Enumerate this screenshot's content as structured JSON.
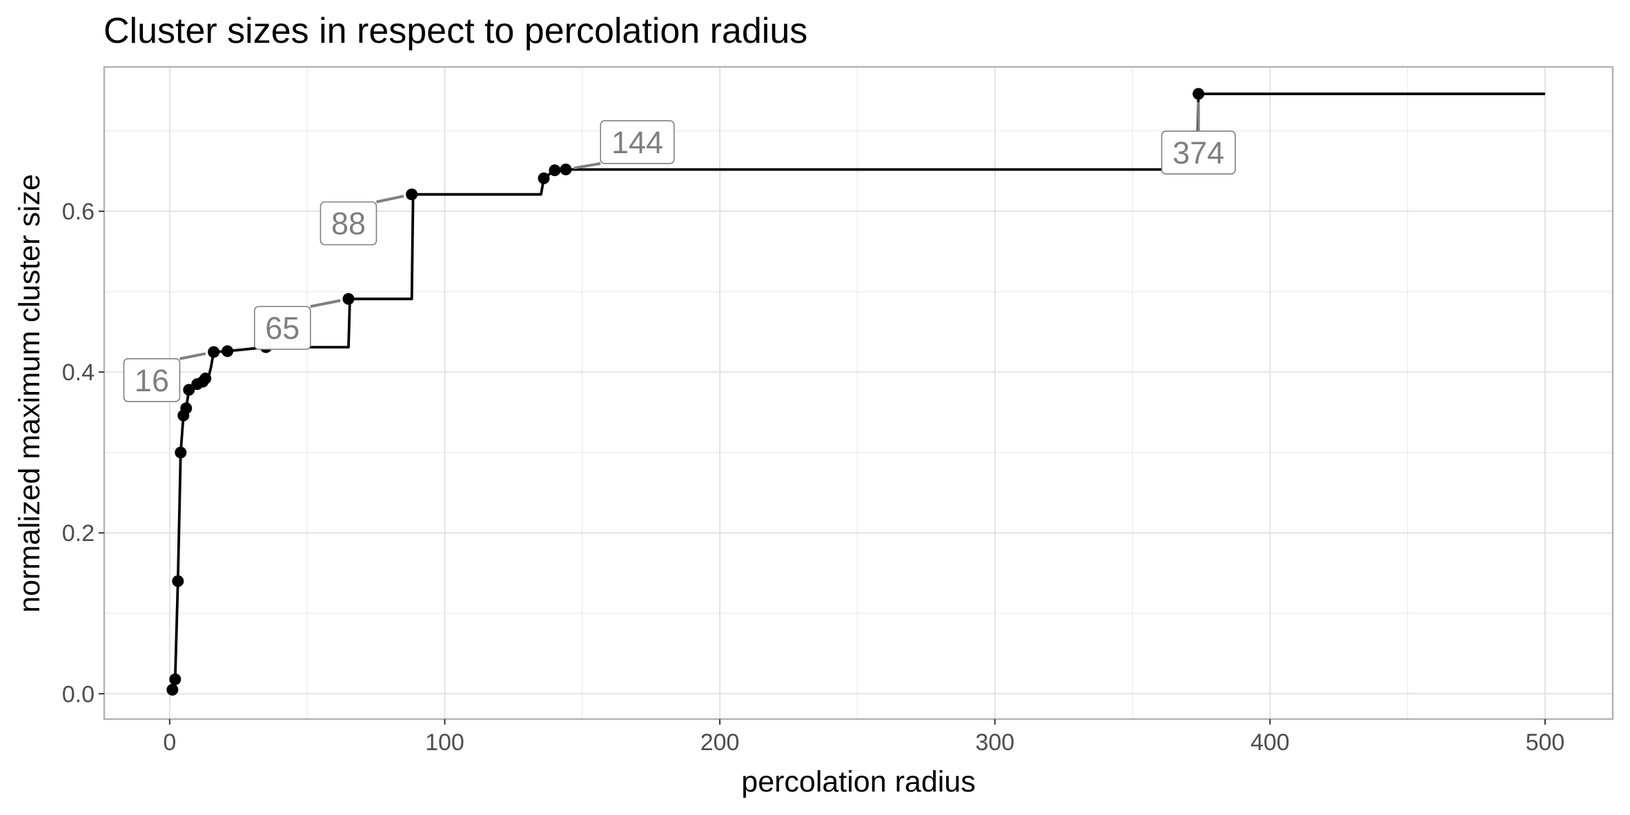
{
  "chart_data": {
    "type": "line",
    "title": "Cluster sizes in respect to percolation radius",
    "xlabel": "percolation radius",
    "ylabel": "normalized maximum cluster size",
    "xlim": [
      -23.8,
      524.6
    ],
    "ylim": [
      -0.0315,
      0.7795
    ],
    "x_ticks": [
      0,
      100,
      200,
      300,
      400,
      500
    ],
    "x_tick_labels": [
      "0",
      "100",
      "200",
      "300",
      "400",
      "500"
    ],
    "y_ticks": [
      0.0,
      0.2,
      0.4,
      0.6
    ],
    "y_tick_labels": [
      "0.0",
      "0.2",
      "0.4",
      "0.6"
    ],
    "grid": true,
    "legend": "none",
    "colors": {
      "line": "#000000",
      "point": "#000000",
      "annotation": "#7f7f7f",
      "grid": "#e2e2e2",
      "frame": "#b3b3b3"
    },
    "series": [
      {
        "values": [
          [
            1,
            0.005
          ],
          [
            2,
            0.018
          ],
          [
            3,
            0.14
          ],
          [
            4,
            0.3
          ],
          [
            5,
            0.346
          ],
          [
            6,
            0.355
          ],
          [
            7,
            0.378
          ],
          [
            9,
            0.383
          ],
          [
            10,
            0.385
          ],
          [
            11,
            0.387
          ],
          [
            12,
            0.388
          ],
          [
            13,
            0.392
          ],
          [
            14,
            0.392
          ],
          [
            15,
            0.406
          ],
          [
            16,
            0.425
          ],
          [
            21,
            0.426
          ],
          [
            35,
            0.431
          ],
          [
            65,
            0.431
          ],
          [
            65.5,
            0.491
          ],
          [
            88,
            0.491
          ],
          [
            88.5,
            0.621
          ],
          [
            135,
            0.621
          ],
          [
            136,
            0.641
          ],
          [
            140,
            0.651
          ],
          [
            144,
            0.652
          ],
          [
            373.5,
            0.652
          ],
          [
            374,
            0.746
          ],
          [
            500,
            0.746
          ]
        ],
        "points": [
          [
            1,
            0.005
          ],
          [
            2,
            0.018
          ],
          [
            3,
            0.14
          ],
          [
            4,
            0.3
          ],
          [
            5,
            0.346
          ],
          [
            6,
            0.355
          ],
          [
            7,
            0.378
          ],
          [
            10,
            0.385
          ],
          [
            12,
            0.388
          ],
          [
            13,
            0.392
          ],
          [
            16,
            0.425
          ],
          [
            21,
            0.426
          ],
          [
            35,
            0.431
          ],
          [
            65,
            0.491
          ],
          [
            88,
            0.621
          ],
          [
            136,
            0.641
          ],
          [
            140,
            0.651
          ],
          [
            144,
            0.652
          ],
          [
            374,
            0.746
          ]
        ]
      }
    ],
    "annotations": [
      {
        "label": "16",
        "x": 16,
        "y": 0.425,
        "label_x": -6.5,
        "label_y": 0.39
      },
      {
        "label": "65",
        "x": 65,
        "y": 0.491,
        "label_x": 41,
        "label_y": 0.455
      },
      {
        "label": "88",
        "x": 88,
        "y": 0.621,
        "label_x": 65,
        "label_y": 0.585
      },
      {
        "label": "144",
        "x": 144,
        "y": 0.652,
        "label_x": 170,
        "label_y": 0.686
      },
      {
        "label": "374",
        "x": 374,
        "y": 0.746,
        "label_x": 374,
        "label_y": 0.673
      }
    ]
  }
}
